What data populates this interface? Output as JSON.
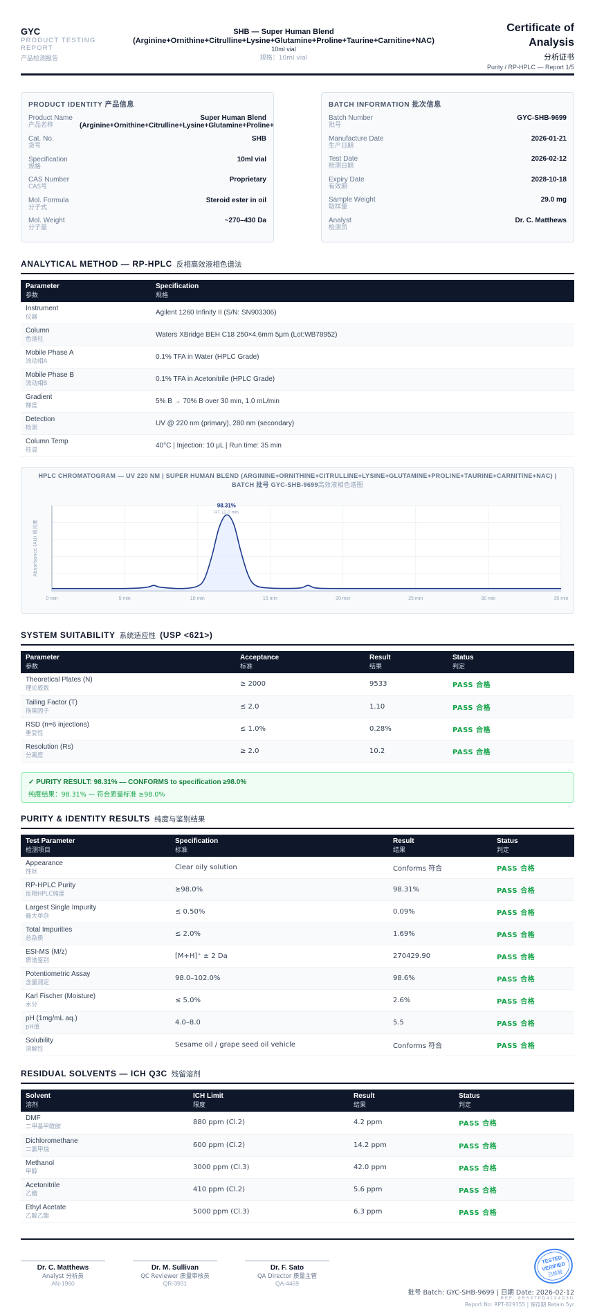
{
  "header": {
    "brand": "GYC",
    "brand_sub": "PRODUCT TESTING REPORT",
    "brand_sub_zh": "产品检测报告",
    "title": "SHB — Super Human Blend (Arginine+Ornithine+Citrulline+Lysine+Glutamine+Proline+Taurine+Carnitine+NAC)",
    "spec": "10ml vial",
    "spec_zh": "规格：10ml vial",
    "cert_title": "Certificate of Analysis",
    "cert_zh": "分析证书",
    "cert_sub": "Purity / RP-HPLC — Report 1/5"
  },
  "product_identity": {
    "title": "PRODUCT IDENTITY",
    "title_zh": "产品信息",
    "rows": [
      {
        "k": "Product Name",
        "kz": "产品名称",
        "v": "Super Human Blend (Arginine+Ornithine+Citrulline+Lysine+Glutamine+Proline+"
      },
      {
        "k": "Cat. No.",
        "kz": "货号",
        "v": "SHB"
      },
      {
        "k": "Specification",
        "kz": "规格",
        "v": "10ml vial"
      },
      {
        "k": "CAS Number",
        "kz": "CAS号",
        "v": "Proprietary"
      },
      {
        "k": "Mol. Formula",
        "kz": "分子式",
        "v": "Steroid ester in oil"
      },
      {
        "k": "Mol. Weight",
        "kz": "分子量",
        "v": "~270–430 Da"
      }
    ]
  },
  "batch_info": {
    "title": "BATCH INFORMATION",
    "title_zh": "批次信息",
    "rows": [
      {
        "k": "Batch Number",
        "kz": "批号",
        "v": "GYC-SHB-9699"
      },
      {
        "k": "Manufacture Date",
        "kz": "生产日期",
        "v": "2026-01-21"
      },
      {
        "k": "Test Date",
        "kz": "检测日期",
        "v": "2026-02-12"
      },
      {
        "k": "Expiry Date",
        "kz": "有效期",
        "v": "2028-10-18"
      },
      {
        "k": "Sample Weight",
        "kz": "取样量",
        "v": "29.0 mg"
      },
      {
        "k": "Analyst",
        "kz": "检测员",
        "v": "Dr. C. Matthews"
      }
    ]
  },
  "method": {
    "title": "ANALYTICAL METHOD — RP-HPLC",
    "title_zh": "反相高效液相色谱法",
    "headers": [
      {
        "en": "Parameter",
        "zh": "参数"
      },
      {
        "en": "Specification",
        "zh": "规格"
      }
    ],
    "rows": [
      {
        "p": "Instrument",
        "pz": "仪器",
        "s": "Agilent 1260 Infinity II (S/N: SN903306)"
      },
      {
        "p": "Column",
        "pz": "色谱柱",
        "s": "Waters XBridge BEH C18 250×4.6mm 5μm (Lot:WB78952)"
      },
      {
        "p": "Mobile Phase A",
        "pz": "流动相A",
        "s": "0.1% TFA in Water (HPLC Grade)"
      },
      {
        "p": "Mobile Phase B",
        "pz": "流动相B",
        "s": "0.1% TFA in Acetonitrile (HPLC Grade)"
      },
      {
        "p": "Gradient",
        "pz": "梯度",
        "s": "5% B → 70% B over 30 min, 1.0 mL/min"
      },
      {
        "p": "Detection",
        "pz": "检测",
        "s": "UV @ 220 nm (primary), 280 nm (secondary)"
      },
      {
        "p": "Column Temp",
        "pz": "柱温",
        "s": "40°C | Injection: 10 μL | Run time: 35 min"
      }
    ]
  },
  "chromatogram": {
    "title": "HPLC CHROMATOGRAM — UV 220 NM | SUPER HUMAN BLEND (ARGININE+ORNITHINE+CITRULLINE+LYSINE+GLUTAMINE+PROLINE+TAURINE+CARNITINE+NAC) | BATCH 批号 GYC-SHB-9699",
    "title_zh": "高效液相色谱图",
    "peak_label": "98.31%",
    "rt_label": "RT 12.0 min"
  },
  "chart_data": {
    "type": "line",
    "title": "HPLC CHROMATOGRAM — UV 220 NM",
    "xlabel": "",
    "ylabel": "Absorbance (AU) 吸光度",
    "xlim": [
      0,
      35
    ],
    "ylim": [
      0,
      1.1
    ],
    "xticks": [
      "0 min",
      "5 min",
      "10 min",
      "15 min",
      "20 min",
      "25 min",
      "30 min",
      "35 min"
    ],
    "grid": true,
    "series": [
      {
        "x": [
          0,
          5,
          6.5,
          7,
          7.5,
          9,
          10,
          10.5,
          11,
          11.5,
          12,
          12.5,
          13,
          13.5,
          14,
          15,
          17,
          17.6,
          18.2,
          20,
          25,
          30,
          35
        ],
        "y": [
          0.03,
          0.03,
          0.045,
          0.07,
          0.045,
          0.03,
          0.06,
          0.16,
          0.45,
          0.82,
          0.98,
          0.86,
          0.5,
          0.2,
          0.07,
          0.035,
          0.035,
          0.07,
          0.035,
          0.03,
          0.03,
          0.03,
          0.03
        ]
      }
    ],
    "annotations": [
      {
        "x": 12.0,
        "text": "98.31%"
      },
      {
        "x": 12.0,
        "text": "RT 12.0 min"
      }
    ],
    "colors": {
      "line": "#1e3a8a",
      "fill": "#e0e7ff"
    }
  },
  "suitability": {
    "title": "SYSTEM SUITABILITY",
    "title_zh": "系统适应性",
    "usp": "(USP <621>)",
    "headers": [
      {
        "en": "Parameter",
        "zh": "参数"
      },
      {
        "en": "Acceptance",
        "zh": "标准"
      },
      {
        "en": "Result",
        "zh": "结果"
      },
      {
        "en": "Status",
        "zh": "判定"
      }
    ],
    "rows": [
      {
        "p": "Theoretical Plates (N)",
        "pz": "理论板数",
        "a": "≥ 2000",
        "r": "9533",
        "s": "PASS 合格"
      },
      {
        "p": "Tailing Factor (T)",
        "pz": "拖尾因子",
        "a": "≤ 2.0",
        "r": "1.10",
        "s": "PASS 合格"
      },
      {
        "p": "RSD (n=6 injections)",
        "pz": "重复性",
        "a": "≤ 1.0%",
        "r": "0.28%",
        "s": "PASS 合格"
      },
      {
        "p": "Resolution (Rs)",
        "pz": "分离度",
        "a": "≥ 2.0",
        "r": "10.2",
        "s": "PASS 合格"
      }
    ]
  },
  "banner": {
    "line1": "✓ PURITY RESULT: 98.31% — CONFORMS to specification ≥98.0%",
    "line2": "纯度结果：98.31% — 符合质量标准 ≥98.0%"
  },
  "purity": {
    "title": "PURITY & IDENTITY RESULTS",
    "title_zh": "纯度与鉴别结果",
    "headers": [
      {
        "en": "Test Parameter",
        "zh": "检测项目"
      },
      {
        "en": "Specification",
        "zh": "标准"
      },
      {
        "en": "Result",
        "zh": "结果"
      },
      {
        "en": "Status",
        "zh": "判定"
      }
    ],
    "rows": [
      {
        "p": "Appearance",
        "pz": "性状",
        "a": "Clear oily solution",
        "r": "Conforms 符合",
        "s": "PASS 合格"
      },
      {
        "p": "RP-HPLC Purity",
        "pz": "反相HPLC纯度",
        "a": "≥98.0%",
        "r": "98.31%",
        "s": "PASS 合格"
      },
      {
        "p": "Largest Single Impurity",
        "pz": "最大单杂",
        "a": "≤ 0.50%",
        "r": "0.09%",
        "s": "PASS 合格"
      },
      {
        "p": "Total Impurities",
        "pz": "总杂质",
        "a": "≤ 2.0%",
        "r": "1.69%",
        "s": "PASS 合格"
      },
      {
        "p": "ESI-MS (M/z)",
        "pz": "质谱鉴别",
        "a": "[M+H]⁺ ± 2 Da",
        "r": "270429.90",
        "s": "PASS 合格"
      },
      {
        "p": "Potentiometric Assay",
        "pz": "含量测定",
        "a": "98.0–102.0%",
        "r": "98.6%",
        "s": "PASS 合格"
      },
      {
        "p": "Karl Fischer (Moisture)",
        "pz": "水分",
        "a": "≤ 5.0%",
        "r": "2.6%",
        "s": "PASS 合格"
      },
      {
        "p": "pH (1mg/mL aq.)",
        "pz": "pH值",
        "a": "4.0–8.0",
        "r": "5.5",
        "s": "PASS 合格"
      },
      {
        "p": "Solubility",
        "pz": "溶解性",
        "a": "Sesame oil / grape seed oil vehicle",
        "r": "Conforms 符合",
        "s": "PASS 合格"
      }
    ]
  },
  "solvents": {
    "title": "RESIDUAL SOLVENTS — ICH Q3C",
    "title_zh": "残留溶剂",
    "headers": [
      {
        "en": "Solvent",
        "zh": "溶剂"
      },
      {
        "en": "ICH Limit",
        "zh": "限度"
      },
      {
        "en": "Result",
        "zh": "结果"
      },
      {
        "en": "Status",
        "zh": "判定"
      }
    ],
    "rows": [
      {
        "p": "DMF",
        "pz": "二甲基甲酰胺",
        "a": "880 ppm (Cl.2)",
        "r": "4.2 ppm",
        "s": "PASS 合格"
      },
      {
        "p": "Dichloromethane",
        "pz": "二氯甲烷",
        "a": "600 ppm (Cl.2)",
        "r": "14.2 ppm",
        "s": "PASS 合格"
      },
      {
        "p": "Methanol",
        "pz": "甲醇",
        "a": "3000 ppm (Cl.3)",
        "r": "42.0 ppm",
        "s": "PASS 合格"
      },
      {
        "p": "Acetonitrile",
        "pz": "乙腈",
        "a": "410 ppm (Cl.2)",
        "r": "5.6 ppm",
        "s": "PASS 合格"
      },
      {
        "p": "Ethyl Acetate",
        "pz": "乙酸乙酯",
        "a": "5000 ppm (Cl.3)",
        "r": "6.3 ppm",
        "s": "PASS 合格"
      }
    ]
  },
  "signatures": [
    {
      "name": "Dr. C. Matthews",
      "role": "Analyst 分析员",
      "id": "AN-1960"
    },
    {
      "name": "Dr. M. Sullivan",
      "role": "QC Reviewer 质量审核员",
      "id": "QR-3931"
    },
    {
      "name": "Dr. F. Sato",
      "role": "QA Director 质量主管",
      "id": "QA-4469"
    }
  ],
  "stamp": {
    "l1": "TESTED",
    "l2": "VERIFIED",
    "l3": "已检验"
  },
  "footer": {
    "line1": "批号 Batch: GYC-SHB-9699 | 日期 Date: 2026-02-12",
    "line2": "REF: 8RS9TPD42X4D3D",
    "line3": "Report No: RPT-829355 | 保存期 Retain 5yr"
  },
  "colors": {
    "navy": "#0f172a",
    "pass": "#16a34a",
    "stamp": "#3b82f6"
  }
}
